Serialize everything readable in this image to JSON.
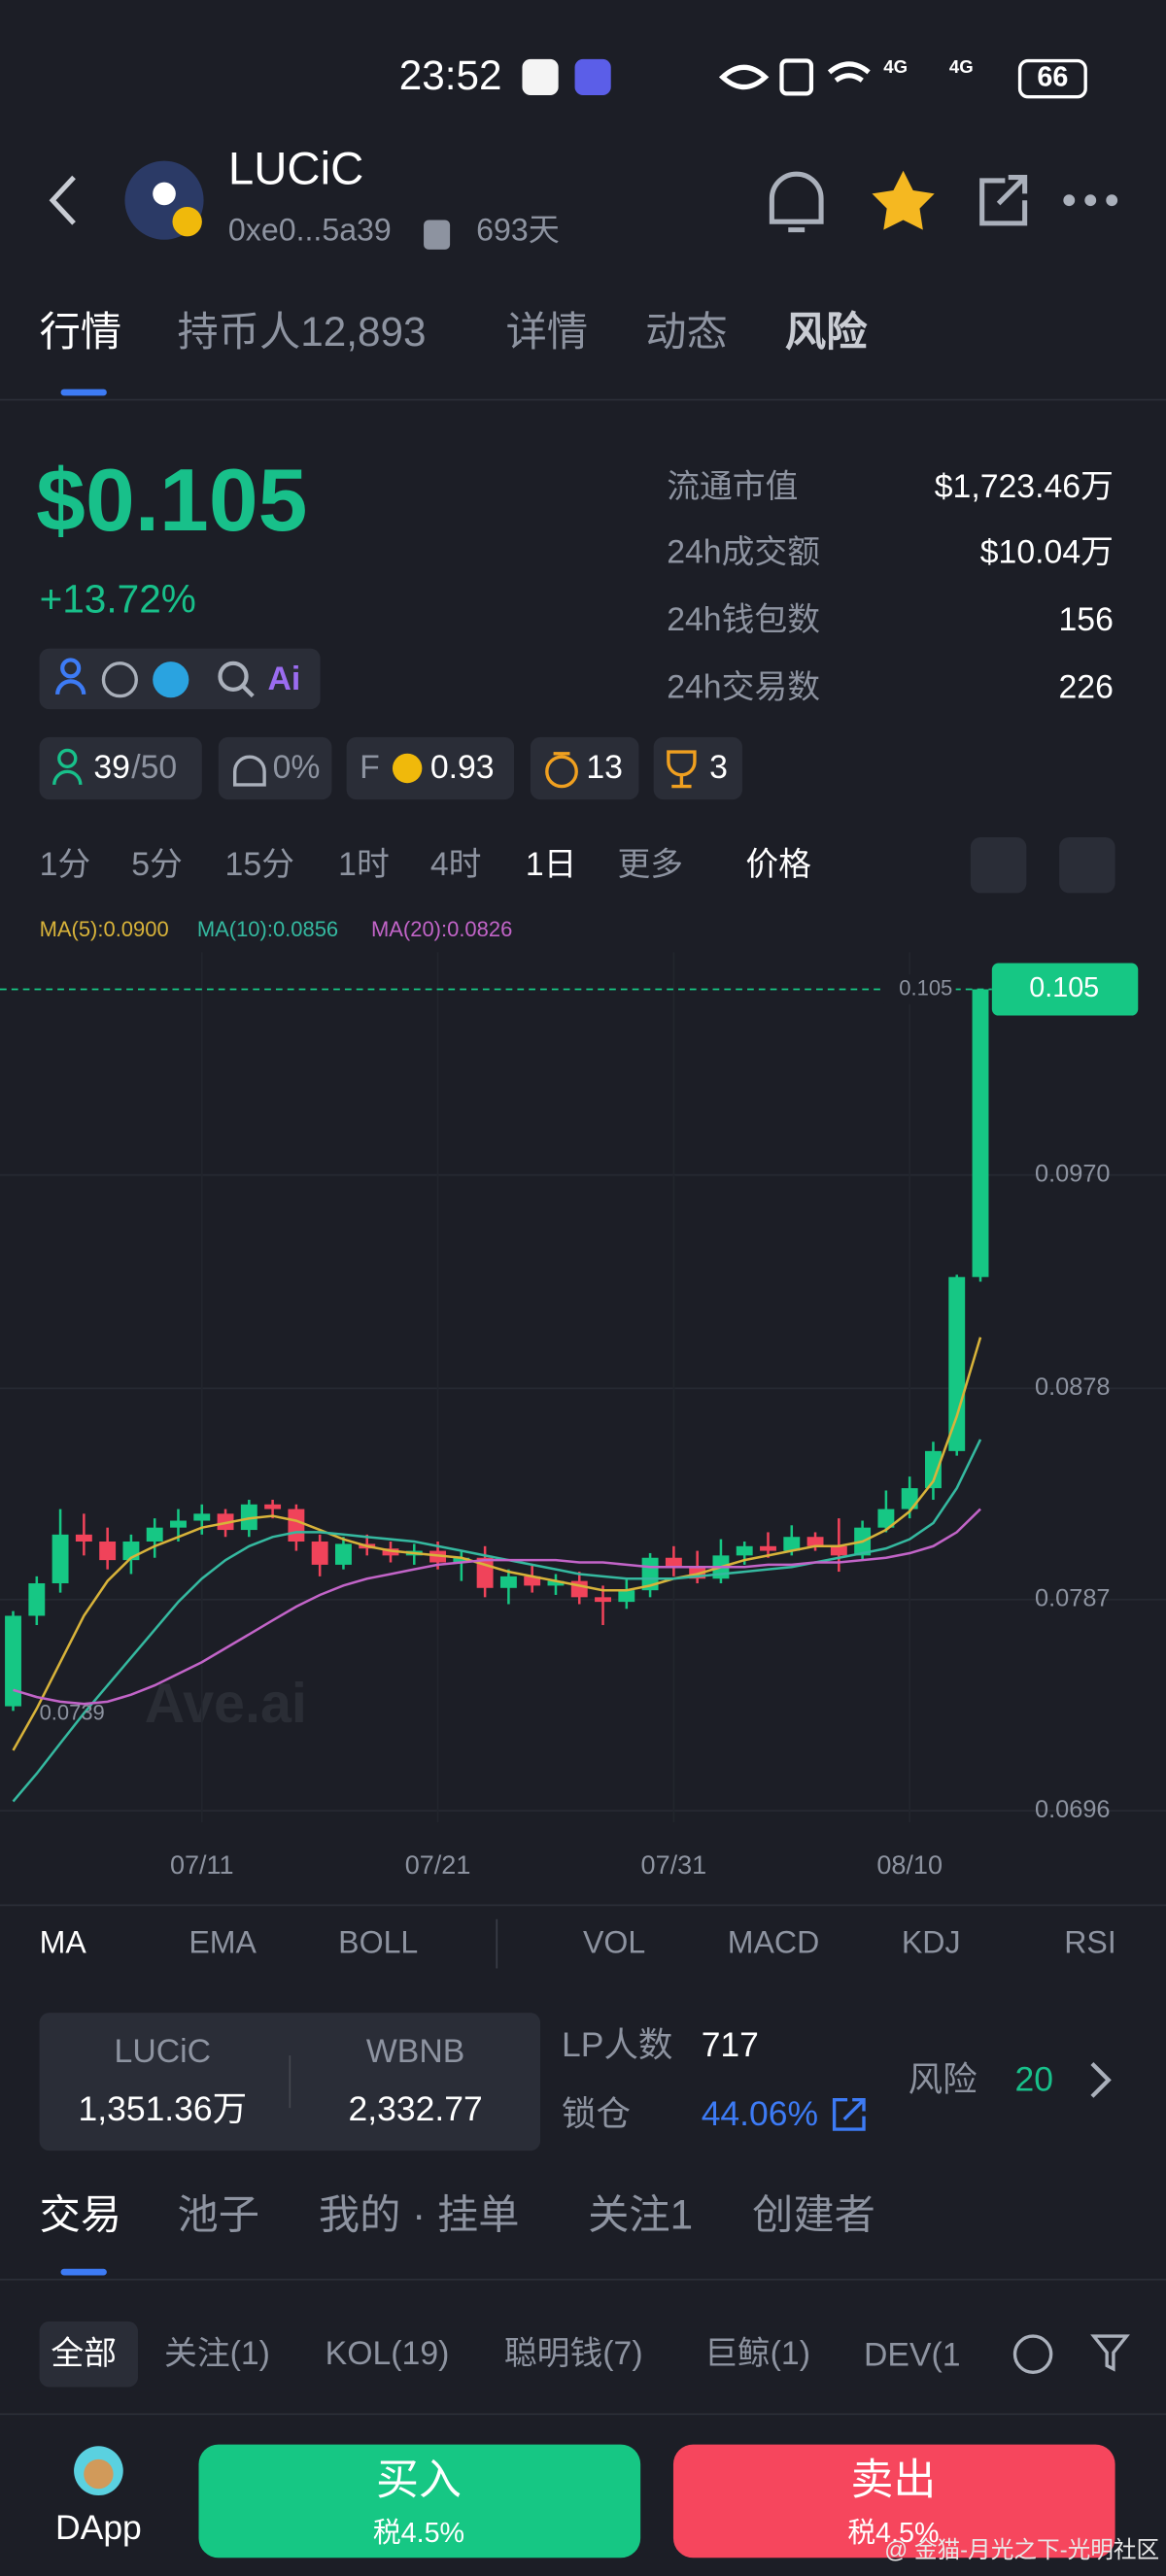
{
  "status_bar": {
    "time": "23:52",
    "signal_1": "4G",
    "signal_2": "4G",
    "battery": "66"
  },
  "header": {
    "name": "LUCiC",
    "address": "0xe0...5a39",
    "age": "693天"
  },
  "tabs": [
    "行情",
    "持币人12,893",
    "详情",
    "动态",
    "风险"
  ],
  "price": {
    "value": "$0.105",
    "change": "+13.72%"
  },
  "stats": [
    {
      "label": "流通市值",
      "value": "$1,723.46万"
    },
    {
      "label": "24h成交额",
      "value": "$10.04万"
    },
    {
      "label": "24h钱包数",
      "value": "156"
    },
    {
      "label": "24h交易数",
      "value": "226"
    }
  ],
  "links": {
    "ai": "Ai"
  },
  "badges": {
    "holders": "39",
    "holders_total": "/50",
    "dev_share": "0%",
    "f_label": "F",
    "f_score": "0.93",
    "bags": "13",
    "trophies": "3"
  },
  "intervals": [
    "1分",
    "5分",
    "15分",
    "1时",
    "4时",
    "1日",
    "更多",
    "价格"
  ],
  "chart_data": {
    "type": "candlestick",
    "watermark": "Ave.ai",
    "categories": [
      null,
      null,
      null,
      null,
      null,
      null,
      null,
      null,
      "07/11",
      null,
      null,
      null,
      null,
      null,
      null,
      null,
      null,
      null,
      "07/21",
      null,
      null,
      null,
      null,
      null,
      null,
      null,
      null,
      null,
      "07/31",
      null,
      null,
      null,
      null,
      null,
      null,
      null,
      null,
      null,
      "08/10",
      null,
      null,
      null
    ],
    "open": [
      0.0741,
      0.078,
      0.0794,
      0.0815,
      0.0812,
      0.0804,
      0.0812,
      0.0818,
      0.0821,
      0.0824,
      0.0817,
      0.0828,
      0.0826,
      0.0812,
      0.0802,
      0.0811,
      0.0809,
      0.0806,
      0.0808,
      0.0803,
      0.0805,
      0.0792,
      0.0797,
      0.0793,
      0.0795,
      0.0788,
      0.0786,
      0.0791,
      0.0805,
      0.0801,
      0.0796,
      0.0806,
      0.081,
      0.0808,
      0.0814,
      0.081,
      0.0806,
      0.0818,
      0.0826,
      0.0835,
      0.0851,
      0.0926
    ],
    "high": [
      0.0782,
      0.0797,
      0.0826,
      0.0824,
      0.0818,
      0.0815,
      0.0822,
      0.0826,
      0.0828,
      0.0826,
      0.083,
      0.083,
      0.0828,
      0.0815,
      0.0814,
      0.0815,
      0.0812,
      0.0811,
      0.0812,
      0.0808,
      0.081,
      0.08,
      0.0802,
      0.0798,
      0.0799,
      0.0793,
      0.0796,
      0.0807,
      0.081,
      0.0808,
      0.0813,
      0.0812,
      0.0816,
      0.0819,
      0.0816,
      0.0822,
      0.0821,
      0.0834,
      0.084,
      0.0855,
      0.0927,
      0.105
    ],
    "low": [
      0.0739,
      0.0776,
      0.079,
      0.0806,
      0.08,
      0.0798,
      0.0805,
      0.0812,
      0.0815,
      0.0814,
      0.0814,
      0.0822,
      0.0808,
      0.0797,
      0.08,
      0.0806,
      0.0803,
      0.0802,
      0.08,
      0.0795,
      0.0788,
      0.0785,
      0.079,
      0.0789,
      0.0785,
      0.0776,
      0.0783,
      0.0788,
      0.0797,
      0.0794,
      0.0794,
      0.0802,
      0.0805,
      0.0806,
      0.0808,
      0.0799,
      0.0804,
      0.0816,
      0.0822,
      0.083,
      0.0849,
      0.0924
    ],
    "close": [
      0.078,
      0.0794,
      0.0815,
      0.0812,
      0.0804,
      0.0812,
      0.0818,
      0.0821,
      0.0824,
      0.0817,
      0.0828,
      0.0826,
      0.0812,
      0.0802,
      0.0811,
      0.0809,
      0.0806,
      0.0808,
      0.0803,
      0.0805,
      0.0792,
      0.0797,
      0.0793,
      0.0795,
      0.0788,
      0.0786,
      0.0791,
      0.0805,
      0.0801,
      0.0796,
      0.0806,
      0.081,
      0.0808,
      0.0814,
      0.081,
      0.0806,
      0.0818,
      0.0826,
      0.0835,
      0.0851,
      0.0926,
      0.105
    ],
    "up_color": "#16c784",
    "down_color": "#f0435a",
    "series": [
      {
        "name": "MA(5):0.0900",
        "color": "#d8b33a",
        "values": [
          0.0722,
          0.074,
          0.076,
          0.078,
          0.0795,
          0.0805,
          0.081,
          0.0814,
          0.0818,
          0.082,
          0.0822,
          0.0823,
          0.0821,
          0.0817,
          0.0813,
          0.081,
          0.0808,
          0.0807,
          0.0806,
          0.0805,
          0.0802,
          0.0799,
          0.0797,
          0.0795,
          0.0793,
          0.0791,
          0.0791,
          0.0793,
          0.0796,
          0.0798,
          0.0801,
          0.0804,
          0.0806,
          0.0808,
          0.081,
          0.081,
          0.0812,
          0.0817,
          0.0825,
          0.0838,
          0.0866,
          0.09
        ]
      },
      {
        "name": "MA(10):0.0856",
        "color": "#35b9a0",
        "values": [
          0.07,
          0.0712,
          0.0725,
          0.0738,
          0.075,
          0.0762,
          0.0774,
          0.0786,
          0.0796,
          0.0804,
          0.081,
          0.0814,
          0.0816,
          0.0816,
          0.0815,
          0.0814,
          0.0813,
          0.0812,
          0.081,
          0.0808,
          0.0806,
          0.0804,
          0.0802,
          0.08,
          0.0798,
          0.0797,
          0.0796,
          0.0796,
          0.0796,
          0.0797,
          0.0798,
          0.0799,
          0.08,
          0.0801,
          0.0803,
          0.0805,
          0.0807,
          0.0809,
          0.0813,
          0.082,
          0.0835,
          0.0856
        ]
      },
      {
        "name": "MA(20):0.0826",
        "color": "#c264c8",
        "values": [
          0.0748,
          0.0745,
          0.0743,
          0.0742,
          0.0743,
          0.0746,
          0.075,
          0.0755,
          0.076,
          0.0766,
          0.0772,
          0.0778,
          0.0784,
          0.0789,
          0.0793,
          0.0796,
          0.0798,
          0.08,
          0.0802,
          0.0803,
          0.0804,
          0.0804,
          0.0804,
          0.0804,
          0.0803,
          0.0803,
          0.0802,
          0.0801,
          0.0801,
          0.0801,
          0.0801,
          0.0801,
          0.0802,
          0.0802,
          0.0803,
          0.0803,
          0.0804,
          0.0805,
          0.0807,
          0.081,
          0.0816,
          0.0826
        ]
      }
    ],
    "ylim": [
      0.0691,
      0.1066
    ],
    "yticks": [
      0.0696,
      0.0787,
      0.0878,
      {
        "value": 0.097,
        "label": "0.0970"
      }
    ],
    "grid": true
  },
  "indicators": [
    "MA",
    "EMA",
    "BOLL",
    "VOL",
    "MACD",
    "KDJ",
    "RSI"
  ],
  "pool": {
    "token_a": "LUCiC",
    "amount_a": "1,351.36万",
    "token_b": "WBNB",
    "amount_b": "2,332.77",
    "lp_label": "LP人数",
    "lp_count": "717",
    "lock_label": "锁仓",
    "lock_pct": "44.06%",
    "risk_label": "风险",
    "risk_score": "20"
  },
  "trade_tabs": [
    "交易",
    "池子",
    "我的 · 挂单",
    "关注1",
    "创建者"
  ],
  "filters": [
    "全部",
    "关注(1)",
    "KOL(19)",
    "聪明钱(7)",
    "巨鲸(1)",
    "DEV(1"
  ],
  "bottom": {
    "dapp": "DApp",
    "buy": "买入",
    "buy_tax": "税4.5%",
    "sell": "卖出",
    "sell_tax": "税4.5%"
  },
  "watermark": "@ 金猫-月光之下-光明社区"
}
